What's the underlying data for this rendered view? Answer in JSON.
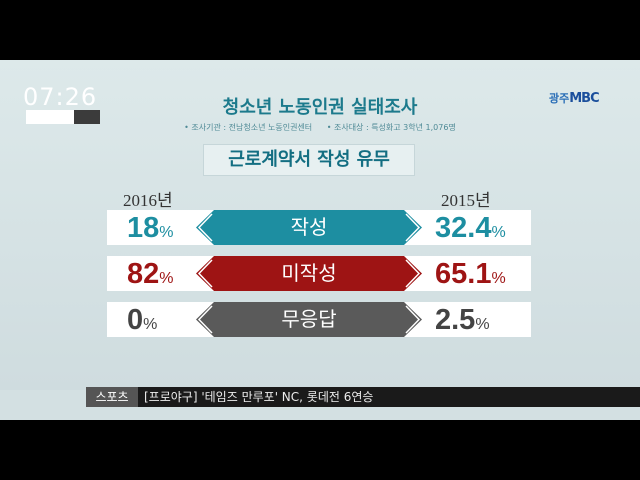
{
  "clock": "07:26",
  "logo": {
    "region": "광주",
    "brand": "MBC"
  },
  "title": "청소년 노동인권 실태조사",
  "subtitle": {
    "agency": "• 조사기관 : 전남청소년 노동인권센터",
    "target": "• 조사대상 : 특성화고 3학년 1,076명"
  },
  "subheading": "근로계약서 작성 유무",
  "years": {
    "left": "2016년",
    "right": "2015년"
  },
  "rows": [
    {
      "label": "작성",
      "left_value": "18",
      "right_value": "32.4",
      "unit": "%",
      "color": "#1d8ea1",
      "value_color": "#1d8ea1"
    },
    {
      "label": "미작성",
      "left_value": "82",
      "right_value": "65.1",
      "unit": "%",
      "color": "#9e1414",
      "value_color": "#9e1414"
    },
    {
      "label": "무응답",
      "left_value": "0",
      "right_value": "2.5",
      "unit": "%",
      "color": "#5a5a5a",
      "value_color": "#444444"
    }
  ],
  "ticker": {
    "tag": "스포츠",
    "text": "[프로야구] '테임즈 만루포' NC, 롯데전 6연승"
  }
}
